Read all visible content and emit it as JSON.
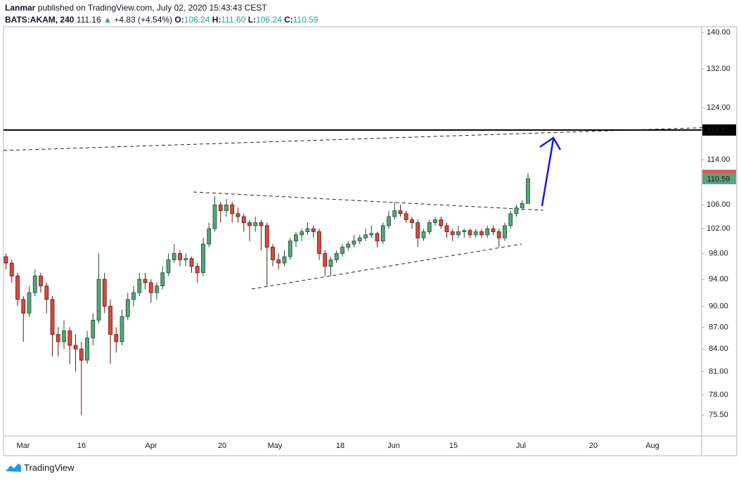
{
  "header": {
    "author": "Lanmar",
    "published": "published on TradingView.com, July 02, 2020 15:43:43 CEST",
    "symbol": "BATS:AKAM, 240",
    "last": "111.16",
    "change": "+4.83 (+4.54%)",
    "ohlc": [
      {
        "label": "O:",
        "value": "106.24"
      },
      {
        "label": "H:",
        "value": "111.60"
      },
      {
        "label": "L:",
        "value": "106.24"
      },
      {
        "label": "C:",
        "value": "110.59"
      }
    ]
  },
  "footer": {
    "brand": "TradingView"
  },
  "chart_data": {
    "type": "candlestick",
    "log_scale": true,
    "grid": false,
    "up_color": "#53a57a",
    "down_color": "#d9493c",
    "up_edge": "#1e4d33",
    "down_edge": "#5a1a12",
    "ylim": [
      73,
      141.3
    ],
    "yticks": [
      {
        "value": 140,
        "label": "140.00"
      },
      {
        "value": 132,
        "label": "132.00"
      },
      {
        "value": 124,
        "label": "124.00"
      },
      {
        "value": 114,
        "label": "114.00"
      },
      {
        "value": 106,
        "label": "106.00"
      },
      {
        "value": 102,
        "label": "102.00"
      },
      {
        "value": 98,
        "label": "98.00"
      },
      {
        "value": 94,
        "label": "94.00"
      },
      {
        "value": 90,
        "label": "90.00"
      },
      {
        "value": 87,
        "label": "87.00"
      },
      {
        "value": 84,
        "label": "84.00"
      },
      {
        "value": 81,
        "label": "81.00"
      },
      {
        "value": 78,
        "label": "78.00"
      },
      {
        "value": 75.5,
        "label": "75.50"
      }
    ],
    "x_labels": [
      "Mar",
      "16",
      "Apr",
      "20",
      "May",
      "18",
      "Jun",
      "15",
      "Jul",
      "20",
      "Aug"
    ],
    "price_lines": [
      {
        "value": 119.61,
        "color": "#000000"
      }
    ],
    "price_labels": [
      {
        "value": 111.16,
        "color": "#e0564a"
      },
      {
        "value": 110.59,
        "color": "#5ba37a"
      }
    ],
    "candles": [
      [
        97.5,
        98,
        95.5,
        96.5
      ],
      [
        96.5,
        97,
        93.5,
        94.5
      ],
      [
        94.5,
        95,
        90,
        91
      ],
      [
        91,
        91.5,
        85,
        89
      ],
      [
        89,
        93,
        88.5,
        92
      ],
      [
        92,
        95.5,
        91.5,
        94.5
      ],
      [
        94.5,
        95,
        92,
        93
      ],
      [
        93,
        93.5,
        89,
        91
      ],
      [
        91,
        91.5,
        83,
        86
      ],
      [
        86,
        87,
        83,
        85
      ],
      [
        85,
        88,
        84,
        86.5
      ],
      [
        86.5,
        87,
        82,
        84.5
      ],
      [
        84.5,
        86,
        81,
        84
      ],
      [
        84,
        85,
        75.5,
        82.5
      ],
      [
        82.5,
        86.5,
        82,
        85.5
      ],
      [
        85.5,
        89,
        84.5,
        88
      ],
      [
        88,
        98,
        87.5,
        94
      ],
      [
        94,
        95,
        89,
        90
      ],
      [
        90,
        91,
        82,
        86
      ],
      [
        86,
        87,
        83.5,
        85
      ],
      [
        85,
        89.5,
        84.5,
        88.5
      ],
      [
        88.5,
        92,
        88,
        91
      ],
      [
        91,
        93,
        90,
        92
      ],
      [
        92,
        95,
        91.5,
        94
      ],
      [
        94,
        95,
        92.5,
        93.5
      ],
      [
        93.5,
        94,
        90.5,
        92
      ],
      [
        92,
        93.5,
        91,
        93
      ],
      [
        93,
        96,
        92.5,
        95
      ],
      [
        95,
        98,
        94.5,
        97
      ],
      [
        97,
        99.5,
        96.5,
        98
      ],
      [
        98,
        98.5,
        96,
        97
      ],
      [
        97,
        98,
        96,
        97.2
      ],
      [
        97.2,
        97.5,
        95,
        96
      ],
      [
        96,
        96.5,
        93.5,
        95
      ],
      [
        95,
        100.5,
        94.5,
        99.5
      ],
      [
        99.5,
        103,
        99,
        102
      ],
      [
        102,
        107.5,
        101.5,
        106
      ],
      [
        106,
        106.5,
        103,
        105
      ],
      [
        105,
        107,
        104,
        106
      ],
      [
        106,
        106.5,
        103,
        104.5
      ],
      [
        104.5,
        105.5,
        103,
        104
      ],
      [
        104,
        104.5,
        101.5,
        103
      ],
      [
        103,
        103.5,
        100,
        102.5
      ],
      [
        102.5,
        104,
        101.5,
        103
      ],
      [
        103,
        103.5,
        98.5,
        102.5
      ],
      [
        102.5,
        103,
        93,
        99
      ],
      [
        99,
        99.5,
        96,
        97
      ],
      [
        97,
        98,
        95.5,
        96.5
      ],
      [
        96.5,
        98.5,
        96,
        97.5
      ],
      [
        97.5,
        100.5,
        97,
        100
      ],
      [
        100,
        101.5,
        99,
        101
      ],
      [
        101,
        102,
        100,
        101.5
      ],
      [
        101.5,
        103,
        101,
        102
      ],
      [
        102,
        102.5,
        100.5,
        101.5
      ],
      [
        101.5,
        102,
        97,
        98
      ],
      [
        98,
        98.5,
        94.5,
        96
      ],
      [
        96,
        97.5,
        94.5,
        97
      ],
      [
        97,
        98.5,
        96.5,
        98
      ],
      [
        98,
        99.5,
        97.5,
        99
      ],
      [
        99,
        100,
        98.5,
        99.5
      ],
      [
        99.5,
        101,
        99,
        100
      ],
      [
        100,
        101,
        99.5,
        100.5
      ],
      [
        100.5,
        102,
        100,
        101
      ],
      [
        101,
        102.5,
        100.5,
        101.2
      ],
      [
        101.2,
        101.5,
        99,
        100
      ],
      [
        100,
        103,
        99.5,
        102.5
      ],
      [
        102.5,
        105,
        102,
        104
      ],
      [
        104,
        106.5,
        103.5,
        105
      ],
      [
        105,
        106,
        104,
        104.5
      ],
      [
        104.5,
        105,
        103,
        103.5
      ],
      [
        103.5,
        104,
        102,
        103
      ],
      [
        103,
        103.5,
        99,
        100.5
      ],
      [
        100.5,
        102,
        100,
        101.5
      ],
      [
        101.5,
        103.5,
        101,
        103
      ],
      [
        103,
        104,
        102.5,
        103.5
      ],
      [
        103.5,
        104,
        102,
        102.5
      ],
      [
        102.5,
        103,
        100.5,
        101.5
      ],
      [
        101.5,
        102,
        100,
        101
      ],
      [
        101,
        102.5,
        100.5,
        101.5
      ],
      [
        101.5,
        102,
        100.5,
        101.7
      ],
      [
        101.7,
        102,
        100.5,
        101
      ],
      [
        101,
        102,
        100.5,
        101.5
      ],
      [
        101.5,
        102,
        100.5,
        101
      ],
      [
        101,
        102.5,
        100.5,
        102
      ],
      [
        102,
        102.5,
        101,
        101.5
      ],
      [
        101.5,
        102,
        99,
        100.5
      ],
      [
        100.5,
        103,
        100,
        102.5
      ],
      [
        102.5,
        105,
        102,
        104.5
      ],
      [
        104.5,
        106,
        104,
        105.5
      ],
      [
        105.5,
        106.8,
        105,
        106.24
      ],
      [
        106.24,
        111.6,
        106.24,
        110.59
      ]
    ]
  }
}
